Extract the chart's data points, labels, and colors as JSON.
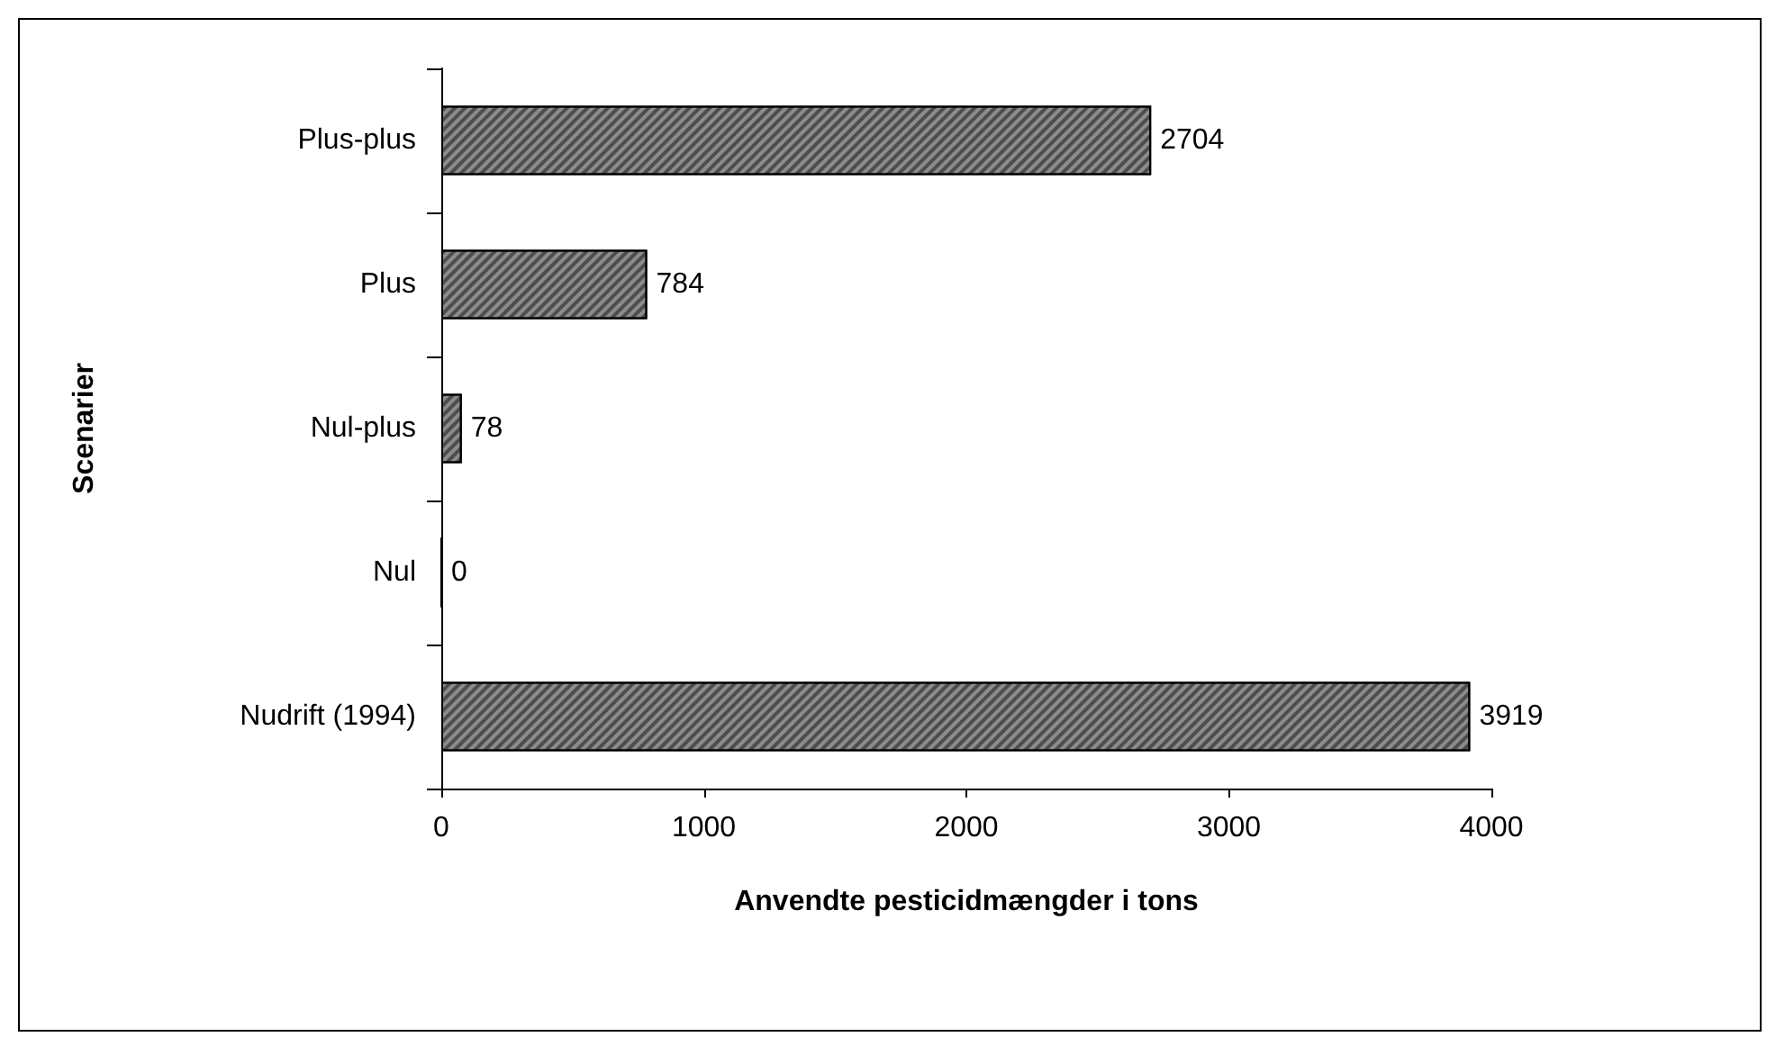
{
  "chart_data": {
    "type": "bar",
    "orientation": "horizontal",
    "xlabel": "Anvendte pesticidmængder i tons",
    "ylabel": "Scenarier",
    "categories": [
      "Plus-plus",
      "Plus",
      "Nul-plus",
      "Nul",
      "Nudrift (1994)"
    ],
    "values": [
      2704,
      784,
      78,
      0,
      3919
    ],
    "color": "#8c8c8c",
    "xlim": [
      0,
      4000
    ],
    "xticks": [
      0,
      1000,
      2000,
      3000,
      4000
    ],
    "data_labels": true
  }
}
